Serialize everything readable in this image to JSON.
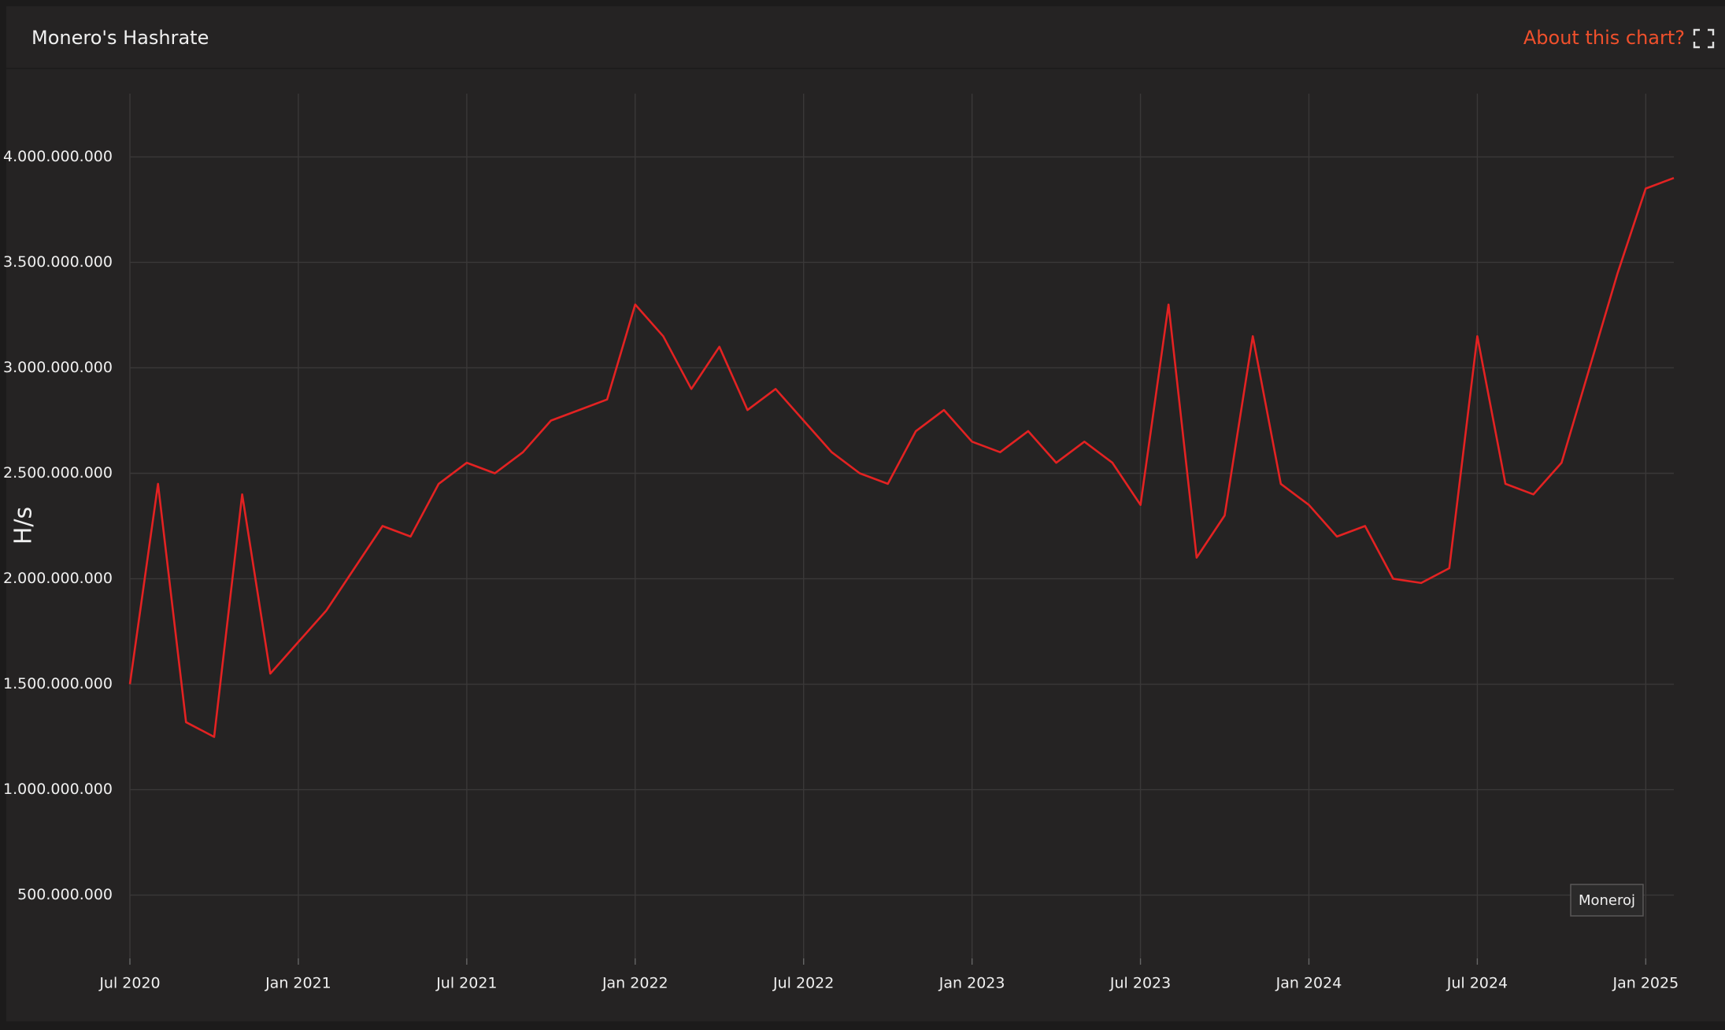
{
  "about_link": "About this chart?",
  "chart_data": {
    "type": "line",
    "title": "Monero's Hashrate",
    "y_label": "H/s",
    "x": [
      "2020-07",
      "2020-08",
      "2020-09",
      "2020-10",
      "2020-11",
      "2020-12",
      "2021-01",
      "2021-02",
      "2021-03",
      "2021-04",
      "2021-05",
      "2021-06",
      "2021-07",
      "2021-08",
      "2021-09",
      "2021-10",
      "2021-11",
      "2021-12",
      "2022-01",
      "2022-02",
      "2022-03",
      "2022-04",
      "2022-05",
      "2022-06",
      "2022-07",
      "2022-08",
      "2022-09",
      "2022-10",
      "2022-11",
      "2022-12",
      "2023-01",
      "2023-02",
      "2023-03",
      "2023-04",
      "2023-05",
      "2023-06",
      "2023-07",
      "2023-08",
      "2023-09",
      "2023-10",
      "2023-11",
      "2023-12",
      "2024-01",
      "2024-02",
      "2024-03",
      "2024-04",
      "2024-05",
      "2024-06",
      "2024-07",
      "2024-08",
      "2024-09",
      "2024-10",
      "2024-11",
      "2024-12",
      "2025-01",
      "2025-02"
    ],
    "series": [
      {
        "name": "Moneroj",
        "color": "#e32222",
        "values": [
          1500000000,
          2450000000,
          1320000000,
          1250000000,
          2400000000,
          1550000000,
          1700000000,
          1850000000,
          2050000000,
          2250000000,
          2200000000,
          2450000000,
          2550000000,
          2500000000,
          2600000000,
          2750000000,
          2800000000,
          2850000000,
          3300000000,
          3150000000,
          2900000000,
          3100000000,
          2800000000,
          2900000000,
          2750000000,
          2600000000,
          2500000000,
          2450000000,
          2700000000,
          2800000000,
          2650000000,
          2600000000,
          2700000000,
          2550000000,
          2650000000,
          2550000000,
          2350000000,
          3300000000,
          2100000000,
          2300000000,
          3150000000,
          2450000000,
          2350000000,
          2200000000,
          2250000000,
          2000000000,
          1980000000,
          2050000000,
          3150000000,
          2450000000,
          2400000000,
          2550000000,
          3000000000,
          3450000000,
          3850000000,
          3900000000
        ]
      }
    ],
    "xlim": [
      "2020-07",
      "2025-02"
    ],
    "xticks": [
      {
        "value": "2020-07",
        "label": "Jul 2020"
      },
      {
        "value": "2021-01",
        "label": "Jan 2021"
      },
      {
        "value": "2021-07",
        "label": "Jul 2021"
      },
      {
        "value": "2022-01",
        "label": "Jan 2022"
      },
      {
        "value": "2022-07",
        "label": "Jul 2022"
      },
      {
        "value": "2023-01",
        "label": "Jan 2023"
      },
      {
        "value": "2023-07",
        "label": "Jul 2023"
      },
      {
        "value": "2024-01",
        "label": "Jan 2024"
      },
      {
        "value": "2024-07",
        "label": "Jul 2024"
      },
      {
        "value": "2025-01",
        "label": "Jan 2025"
      }
    ],
    "ylim": [
      200000000,
      4300000000
    ],
    "yticks": [
      {
        "value": 500000000,
        "label": "500.000.000"
      },
      {
        "value": 1000000000,
        "label": "1.000.000.000"
      },
      {
        "value": 1500000000,
        "label": "1.500.000.000"
      },
      {
        "value": 2000000000,
        "label": "2.000.000.000"
      },
      {
        "value": 2500000000,
        "label": "2.500.000.000"
      },
      {
        "value": 3000000000,
        "label": "3.000.000.000"
      },
      {
        "value": 3500000000,
        "label": "3.500.000.000"
      },
      {
        "value": 4000000000,
        "label": "4.000.000.000"
      }
    ],
    "grid": true
  }
}
